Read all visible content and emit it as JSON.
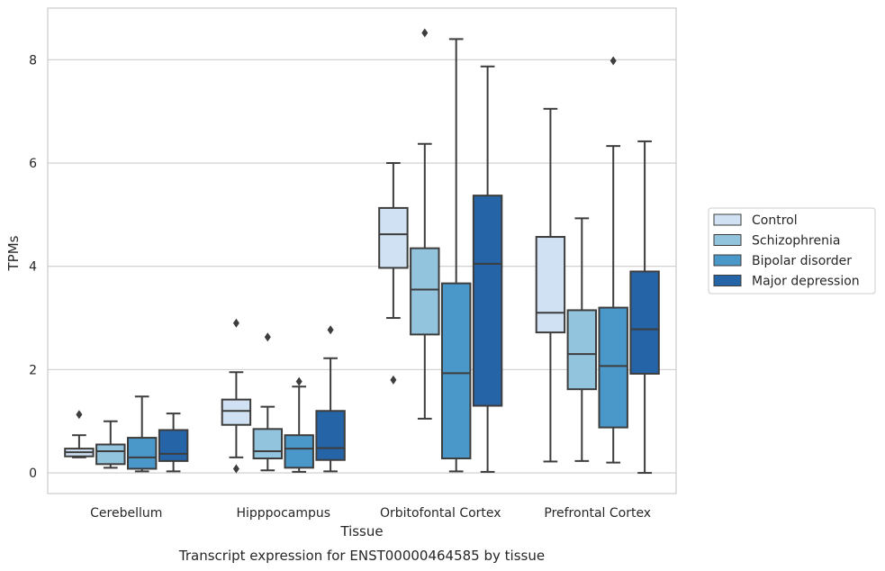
{
  "chart_data": {
    "type": "box",
    "title": "",
    "caption": "Transcript expression for ENST00000464585 by tissue",
    "xlabel": "Tissue",
    "ylabel": "TPMs",
    "ylim": [
      -0.4,
      9.0
    ],
    "yticks": [
      0,
      2,
      4,
      6,
      8
    ],
    "grid": "horizontal",
    "legend_position": "right",
    "categories": [
      "Cerebellum",
      "Hipppocampus",
      "Orbitofontal Cortex",
      "Prefrontal Cortex"
    ],
    "series": [
      {
        "name": "Control",
        "color": "#cfe1f2",
        "boxes": [
          {
            "q1": 0.32,
            "median": 0.4,
            "q3": 0.47,
            "whislo": 0.3,
            "whishi": 0.73,
            "fliers": [
              1.13
            ]
          },
          {
            "q1": 0.93,
            "median": 1.2,
            "q3": 1.42,
            "whislo": 0.3,
            "whishi": 1.95,
            "fliers": [
              2.9,
              0.08
            ]
          },
          {
            "q1": 3.97,
            "median": 4.62,
            "q3": 5.13,
            "whislo": 3.0,
            "whishi": 6.0,
            "fliers": [
              1.8
            ]
          },
          {
            "q1": 2.72,
            "median": 3.1,
            "q3": 4.57,
            "whislo": 0.22,
            "whishi": 7.05,
            "fliers": []
          }
        ]
      },
      {
        "name": "Schizophrenia",
        "color": "#93c4de",
        "boxes": [
          {
            "q1": 0.17,
            "median": 0.42,
            "q3": 0.55,
            "whislo": 0.1,
            "whishi": 1.0,
            "fliers": []
          },
          {
            "q1": 0.28,
            "median": 0.42,
            "q3": 0.85,
            "whislo": 0.05,
            "whishi": 1.28,
            "fliers": [
              2.63
            ]
          },
          {
            "q1": 2.68,
            "median": 3.55,
            "q3": 4.35,
            "whislo": 1.05,
            "whishi": 6.37,
            "fliers": [
              8.52
            ]
          },
          {
            "q1": 1.62,
            "median": 2.3,
            "q3": 3.15,
            "whislo": 0.23,
            "whishi": 4.93,
            "fliers": []
          }
        ]
      },
      {
        "name": "Bipolar disorder",
        "color": "#4a98c9",
        "boxes": [
          {
            "q1": 0.08,
            "median": 0.3,
            "q3": 0.68,
            "whislo": 0.03,
            "whishi": 1.48,
            "fliers": []
          },
          {
            "q1": 0.1,
            "median": 0.47,
            "q3": 0.73,
            "whislo": 0.02,
            "whishi": 1.67,
            "fliers": [
              1.77
            ]
          },
          {
            "q1": 0.28,
            "median": 1.93,
            "q3": 3.67,
            "whislo": 0.03,
            "whishi": 8.4,
            "fliers": []
          },
          {
            "q1": 0.88,
            "median": 2.07,
            "q3": 3.2,
            "whislo": 0.2,
            "whishi": 6.33,
            "fliers": [
              7.98
            ]
          }
        ]
      },
      {
        "name": "Major depression",
        "color": "#2464a7",
        "boxes": [
          {
            "q1": 0.23,
            "median": 0.37,
            "q3": 0.83,
            "whislo": 0.03,
            "whishi": 1.15,
            "fliers": []
          },
          {
            "q1": 0.25,
            "median": 0.48,
            "q3": 1.2,
            "whislo": 0.03,
            "whishi": 2.22,
            "fliers": [
              2.77
            ]
          },
          {
            "q1": 1.3,
            "median": 4.05,
            "q3": 5.37,
            "whislo": 0.02,
            "whishi": 7.87,
            "fliers": []
          },
          {
            "q1": 1.92,
            "median": 2.78,
            "q3": 3.9,
            "whislo": 0.0,
            "whishi": 6.42,
            "fliers": []
          }
        ]
      }
    ]
  }
}
